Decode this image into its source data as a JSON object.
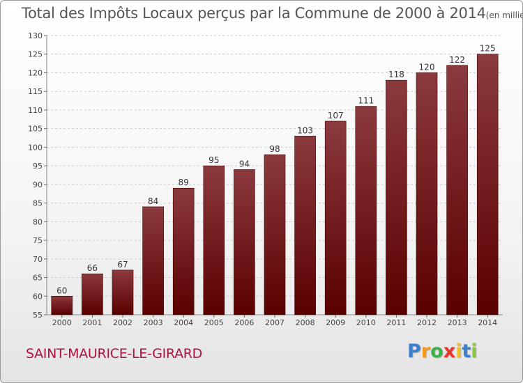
{
  "title": {
    "main": "Total des Impôts Locaux perçus par la Commune de 2000 à 2014",
    "unit": "(en milliers d'€)"
  },
  "commune": "SAINT-MAURICE-LE-GIRARD",
  "logo": {
    "letters": [
      "P",
      "r",
      "o",
      "x",
      "i",
      "t",
      "i"
    ],
    "colors": [
      "#3b7fd1",
      "#f29a1d",
      "#3bb14a",
      "#e8362c",
      "#f2c01d",
      "#3b7fd1",
      "#8cc63f"
    ]
  },
  "colors": {
    "bar_top": "#8b3a3e",
    "bar_bottom": "#5a0000",
    "title": "#555555",
    "commune": "#b0123e"
  },
  "chart_data": {
    "type": "bar",
    "title": "Total des Impôts Locaux perçus par la Commune de 2000 à 2014",
    "subtitle": "(en milliers d'€)",
    "xlabel": "",
    "ylabel": "",
    "categories": [
      "2000",
      "2001",
      "2002",
      "2003",
      "2004",
      "2005",
      "2006",
      "2007",
      "2008",
      "2009",
      "2010",
      "2011",
      "2012",
      "2013",
      "2014"
    ],
    "values": [
      60,
      66,
      67,
      84,
      89,
      95,
      94,
      98,
      103,
      107,
      111,
      118,
      120,
      122,
      125
    ],
    "ylim": [
      55,
      130
    ],
    "yticks": [
      55,
      60,
      65,
      70,
      75,
      80,
      85,
      90,
      95,
      100,
      105,
      110,
      115,
      120,
      125,
      130
    ],
    "grid": "horizontal dashed",
    "legend": "none"
  }
}
